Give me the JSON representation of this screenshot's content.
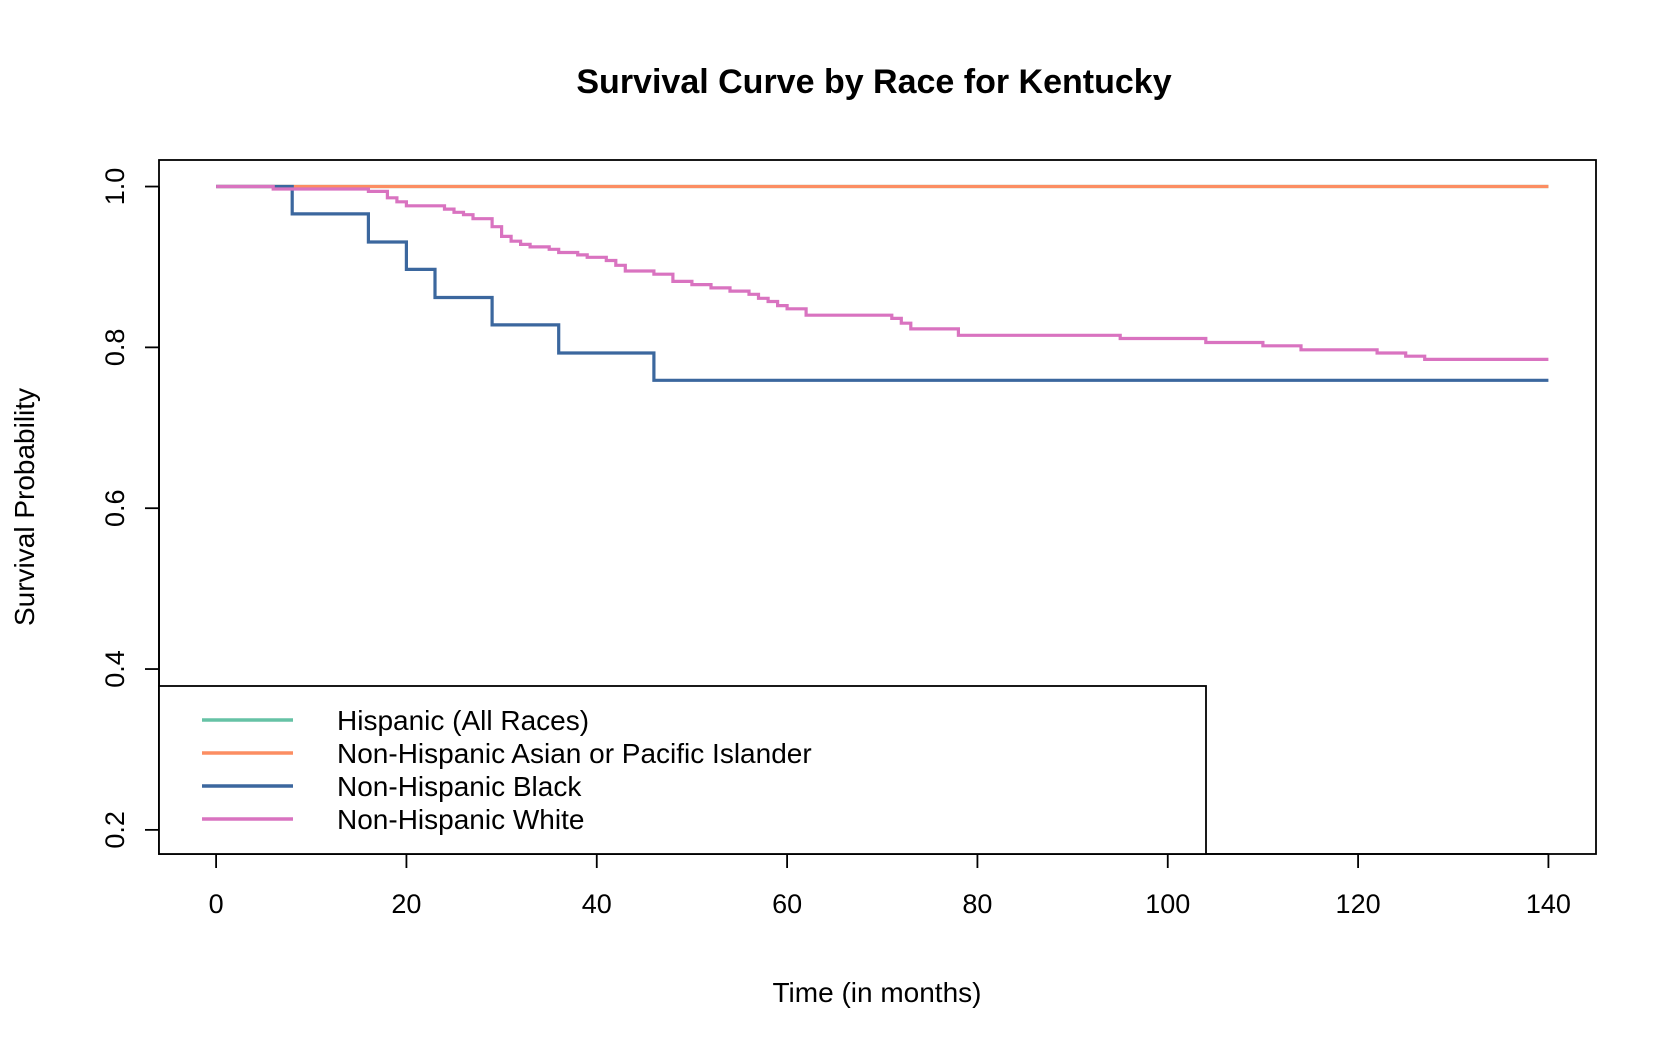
{
  "chart_data": {
    "type": "line",
    "step": true,
    "title": "Survival Curve by Race for Kentucky",
    "xlabel": "Time (in months)",
    "ylabel": "Survival Probability",
    "xlim": [
      -6,
      145
    ],
    "ylim": [
      0.17,
      1.033
    ],
    "xticks": [
      0,
      20,
      40,
      60,
      80,
      100,
      120,
      140
    ],
    "xtick_labels": [
      "0",
      "20",
      "40",
      "60",
      "80",
      "100",
      "120",
      "140"
    ],
    "yticks": [
      0.2,
      0.4,
      0.6,
      0.8,
      1.0
    ],
    "ytick_labels": [
      "0.2",
      "0.4",
      "0.6",
      "0.8",
      "1.0"
    ],
    "grid": false,
    "legend_position": "bottom-left",
    "series": [
      {
        "name": "Hispanic (All Races)",
        "color": "#66c2a5",
        "x": [
          0,
          140
        ],
        "y": [
          1.0,
          1.0
        ]
      },
      {
        "name": "Non-Hispanic Asian or Pacific Islander",
        "color": "#fc8d62",
        "x": [
          0,
          140
        ],
        "y": [
          1.0,
          1.0
        ]
      },
      {
        "name": "Non-Hispanic Black",
        "color": "#3b679e",
        "x": [
          0,
          8,
          16,
          20,
          23,
          29,
          36,
          46,
          140
        ],
        "y": [
          1.0,
          0.966,
          0.931,
          0.897,
          0.862,
          0.828,
          0.793,
          0.759,
          0.759
        ]
      },
      {
        "name": "Non-Hispanic White",
        "color": "#d973c0",
        "x": [
          0,
          6,
          16,
          18,
          19,
          20,
          24,
          25,
          26,
          27,
          29,
          30,
          31,
          32,
          33,
          35,
          36,
          38,
          39,
          41,
          42,
          43,
          46,
          48,
          50,
          52,
          54,
          56,
          57,
          58,
          59,
          60,
          62,
          65,
          67,
          70,
          71,
          72,
          73,
          78,
          86,
          95,
          101,
          102,
          104,
          110,
          114,
          120,
          122,
          125,
          127,
          140
        ],
        "y": [
          1.0,
          0.997,
          0.994,
          0.986,
          0.981,
          0.976,
          0.972,
          0.968,
          0.965,
          0.96,
          0.95,
          0.938,
          0.932,
          0.928,
          0.925,
          0.922,
          0.918,
          0.915,
          0.912,
          0.908,
          0.902,
          0.895,
          0.891,
          0.882,
          0.878,
          0.874,
          0.87,
          0.866,
          0.861,
          0.857,
          0.852,
          0.848,
          0.84,
          0.84,
          0.84,
          0.84,
          0.836,
          0.83,
          0.823,
          0.815,
          0.815,
          0.811,
          0.811,
          0.811,
          0.806,
          0.802,
          0.797,
          0.797,
          0.793,
          0.789,
          0.785,
          0.785
        ]
      }
    ]
  }
}
